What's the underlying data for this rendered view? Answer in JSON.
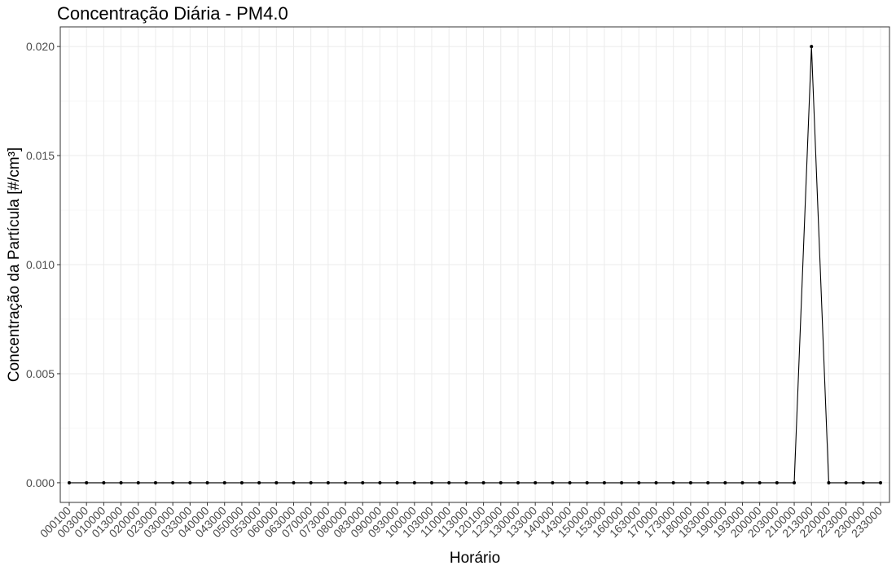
{
  "chart_data": {
    "type": "line",
    "title": "Concentração Diária - PM4.0",
    "xlabel": "Horário",
    "ylabel": "Concentração da Partícula [#/cm³]",
    "categories": [
      "000100",
      "003000",
      "010000",
      "013000",
      "020000",
      "023000",
      "030000",
      "033000",
      "040000",
      "043000",
      "050000",
      "053000",
      "060000",
      "063000",
      "070000",
      "073000",
      "080000",
      "083000",
      "090000",
      "093000",
      "100000",
      "103000",
      "110000",
      "113000",
      "120100",
      "123000",
      "130000",
      "133000",
      "140000",
      "143000",
      "150000",
      "153000",
      "160000",
      "163000",
      "170000",
      "173000",
      "180000",
      "183000",
      "190000",
      "193000",
      "200000",
      "203000",
      "210000",
      "213000",
      "220000",
      "223000",
      "230000",
      "233000"
    ],
    "values": [
      0,
      0,
      0,
      0,
      0,
      0,
      0,
      0,
      0,
      0,
      0,
      0,
      0,
      0,
      0,
      0,
      0,
      0,
      0,
      0,
      0,
      0,
      0,
      0,
      0,
      0,
      0,
      0,
      0,
      0,
      0,
      0,
      0,
      0,
      0,
      0,
      0,
      0,
      0,
      0,
      0,
      0,
      0,
      0.02,
      0,
      0,
      0,
      0
    ],
    "y_ticks": [
      "0.000",
      "0.005",
      "0.010",
      "0.015",
      "0.020"
    ],
    "ylim": [
      -0.0009,
      0.0209
    ],
    "grid": true,
    "colors": {
      "line": "#000000",
      "grid": "#ebebeb",
      "panel_border": "#333333"
    }
  }
}
